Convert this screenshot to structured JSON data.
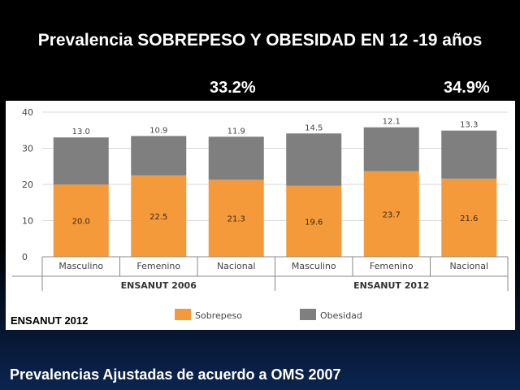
{
  "title": "Prevalencia SOBREPESO Y OBESIDAD EN 12 -19 años",
  "totals": {
    "ensanut_2006": "33.2%",
    "ensanut_2012": "34.9%"
  },
  "source": "ENSANUT 2012",
  "footer": "Prevalencias Ajustadas de acuerdo a OMS 2007",
  "chart_data": {
    "type": "bar",
    "stacked": true,
    "categories": [
      "Masculino",
      "Femenino",
      "Nacional",
      "Masculino",
      "Femenino",
      "Nacional"
    ],
    "groups": [
      {
        "label": "ENSANUT 2006",
        "categories": [
          0,
          1,
          2
        ]
      },
      {
        "label": "ENSANUT 2012",
        "categories": [
          3,
          4,
          5
        ]
      }
    ],
    "series": [
      {
        "name": "Sobrepeso",
        "color": "#f59a3b",
        "values": [
          20.0,
          22.5,
          21.3,
          19.6,
          23.7,
          21.6
        ]
      },
      {
        "name": "Obesidad",
        "color": "#7f7f7f",
        "values": [
          13.0,
          10.9,
          11.9,
          14.5,
          12.1,
          13.3
        ]
      }
    ],
    "value_labels": {
      "Sobrepeso": [
        "20.0",
        "22.5",
        "21.3",
        "19.6",
        "23.7",
        "21.6"
      ],
      "Obesidad": [
        "13.0",
        "10.9",
        "11.9",
        "14.5",
        "12.1",
        "13.3"
      ]
    },
    "yticks": [
      "0",
      "10",
      "20",
      "30",
      "40"
    ],
    "ylim": [
      0,
      40
    ],
    "grid": true,
    "legend": "bottom"
  }
}
